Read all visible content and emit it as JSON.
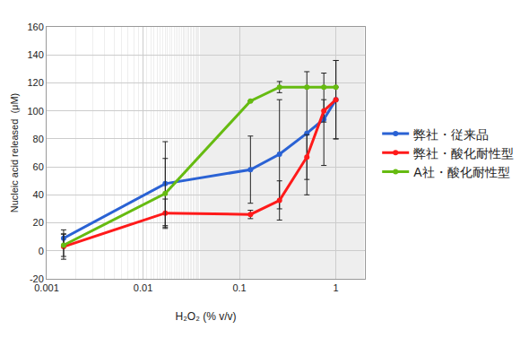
{
  "chart_data": {
    "type": "line",
    "x_label": "H₂O₂ (% v/v)",
    "y_label": "Nucleic acid released  (μM)",
    "log": "x",
    "grid": true,
    "legend": "right",
    "marker": "circle",
    "xlim": [
      0.001,
      2
    ],
    "xticks": [
      0.001,
      0.01,
      0.1,
      1
    ],
    "ylim": [
      -20,
      160
    ],
    "yticks": [
      -20,
      0,
      20,
      40,
      60,
      80,
      100,
      120,
      140,
      160
    ],
    "x": [
      0.0015,
      0.017,
      0.13,
      0.26,
      0.5,
      0.75,
      1
    ],
    "series": [
      {
        "name": "弊社・従来品",
        "color": "#2a62d4",
        "values": [
          9,
          48,
          58,
          69,
          84,
          94,
          108
        ],
        "errors": [
          6,
          30,
          24,
          39,
          44,
          33,
          28
        ]
      },
      {
        "name": "弊社・酸化耐性型",
        "color": "#ff1a1a",
        "values": [
          3,
          27,
          26,
          36,
          67,
          100,
          108
        ],
        "errors": [
          9,
          10,
          3,
          14,
          16,
          8,
          28
        ]
      },
      {
        "name": "A社・酸化耐性型",
        "color": "#66bb11",
        "values": [
          4,
          41,
          107,
          117,
          117,
          117,
          117
        ],
        "errors": [
          8,
          25,
          0,
          4,
          0,
          0,
          0
        ]
      }
    ]
  }
}
